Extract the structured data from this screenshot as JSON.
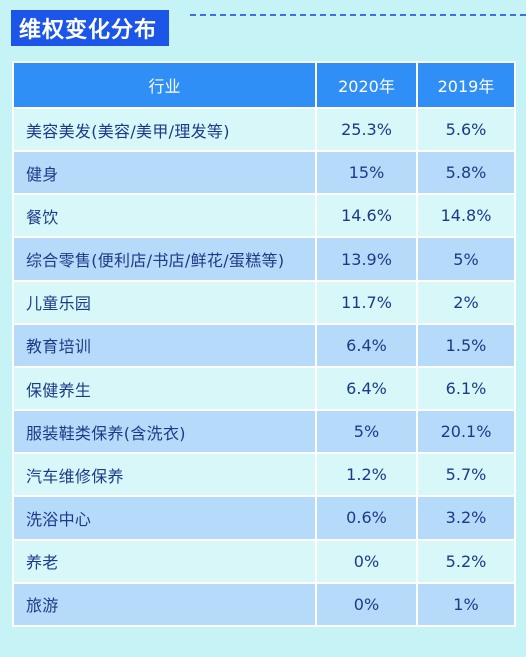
{
  "title": "维权变化分布",
  "chart_data": {
    "type": "table",
    "title": "维权变化分布",
    "columns": [
      "行业",
      "2020年",
      "2019年"
    ],
    "rows": [
      {
        "category": "美容美发(美容/美甲/理发等)",
        "y2020": "25.3%",
        "y2019": "5.6%"
      },
      {
        "category": "健身",
        "y2020": "15%",
        "y2019": "5.8%"
      },
      {
        "category": "餐饮",
        "y2020": "14.6%",
        "y2019": "14.8%"
      },
      {
        "category": "综合零售(便利店/书店/鲜花/蛋糕等)",
        "y2020": "13.9%",
        "y2019": "5%"
      },
      {
        "category": "儿童乐园",
        "y2020": "11.7%",
        "y2019": "2%"
      },
      {
        "category": "教育培训",
        "y2020": "6.4%",
        "y2019": "1.5%"
      },
      {
        "category": "保健养生",
        "y2020": "6.4%",
        "y2019": "6.1%"
      },
      {
        "category": "服装鞋类保养(含洗衣)",
        "y2020": "5%",
        "y2019": "20.1%"
      },
      {
        "category": "汽车维修保养",
        "y2020": "1.2%",
        "y2019": "5.7%"
      },
      {
        "category": "洗浴中心",
        "y2020": "0.6%",
        "y2019": "3.2%"
      },
      {
        "category": "养老",
        "y2020": "0%",
        "y2019": "5.2%"
      },
      {
        "category": "旅游",
        "y2020": "0%",
        "y2019": "1%"
      }
    ]
  }
}
